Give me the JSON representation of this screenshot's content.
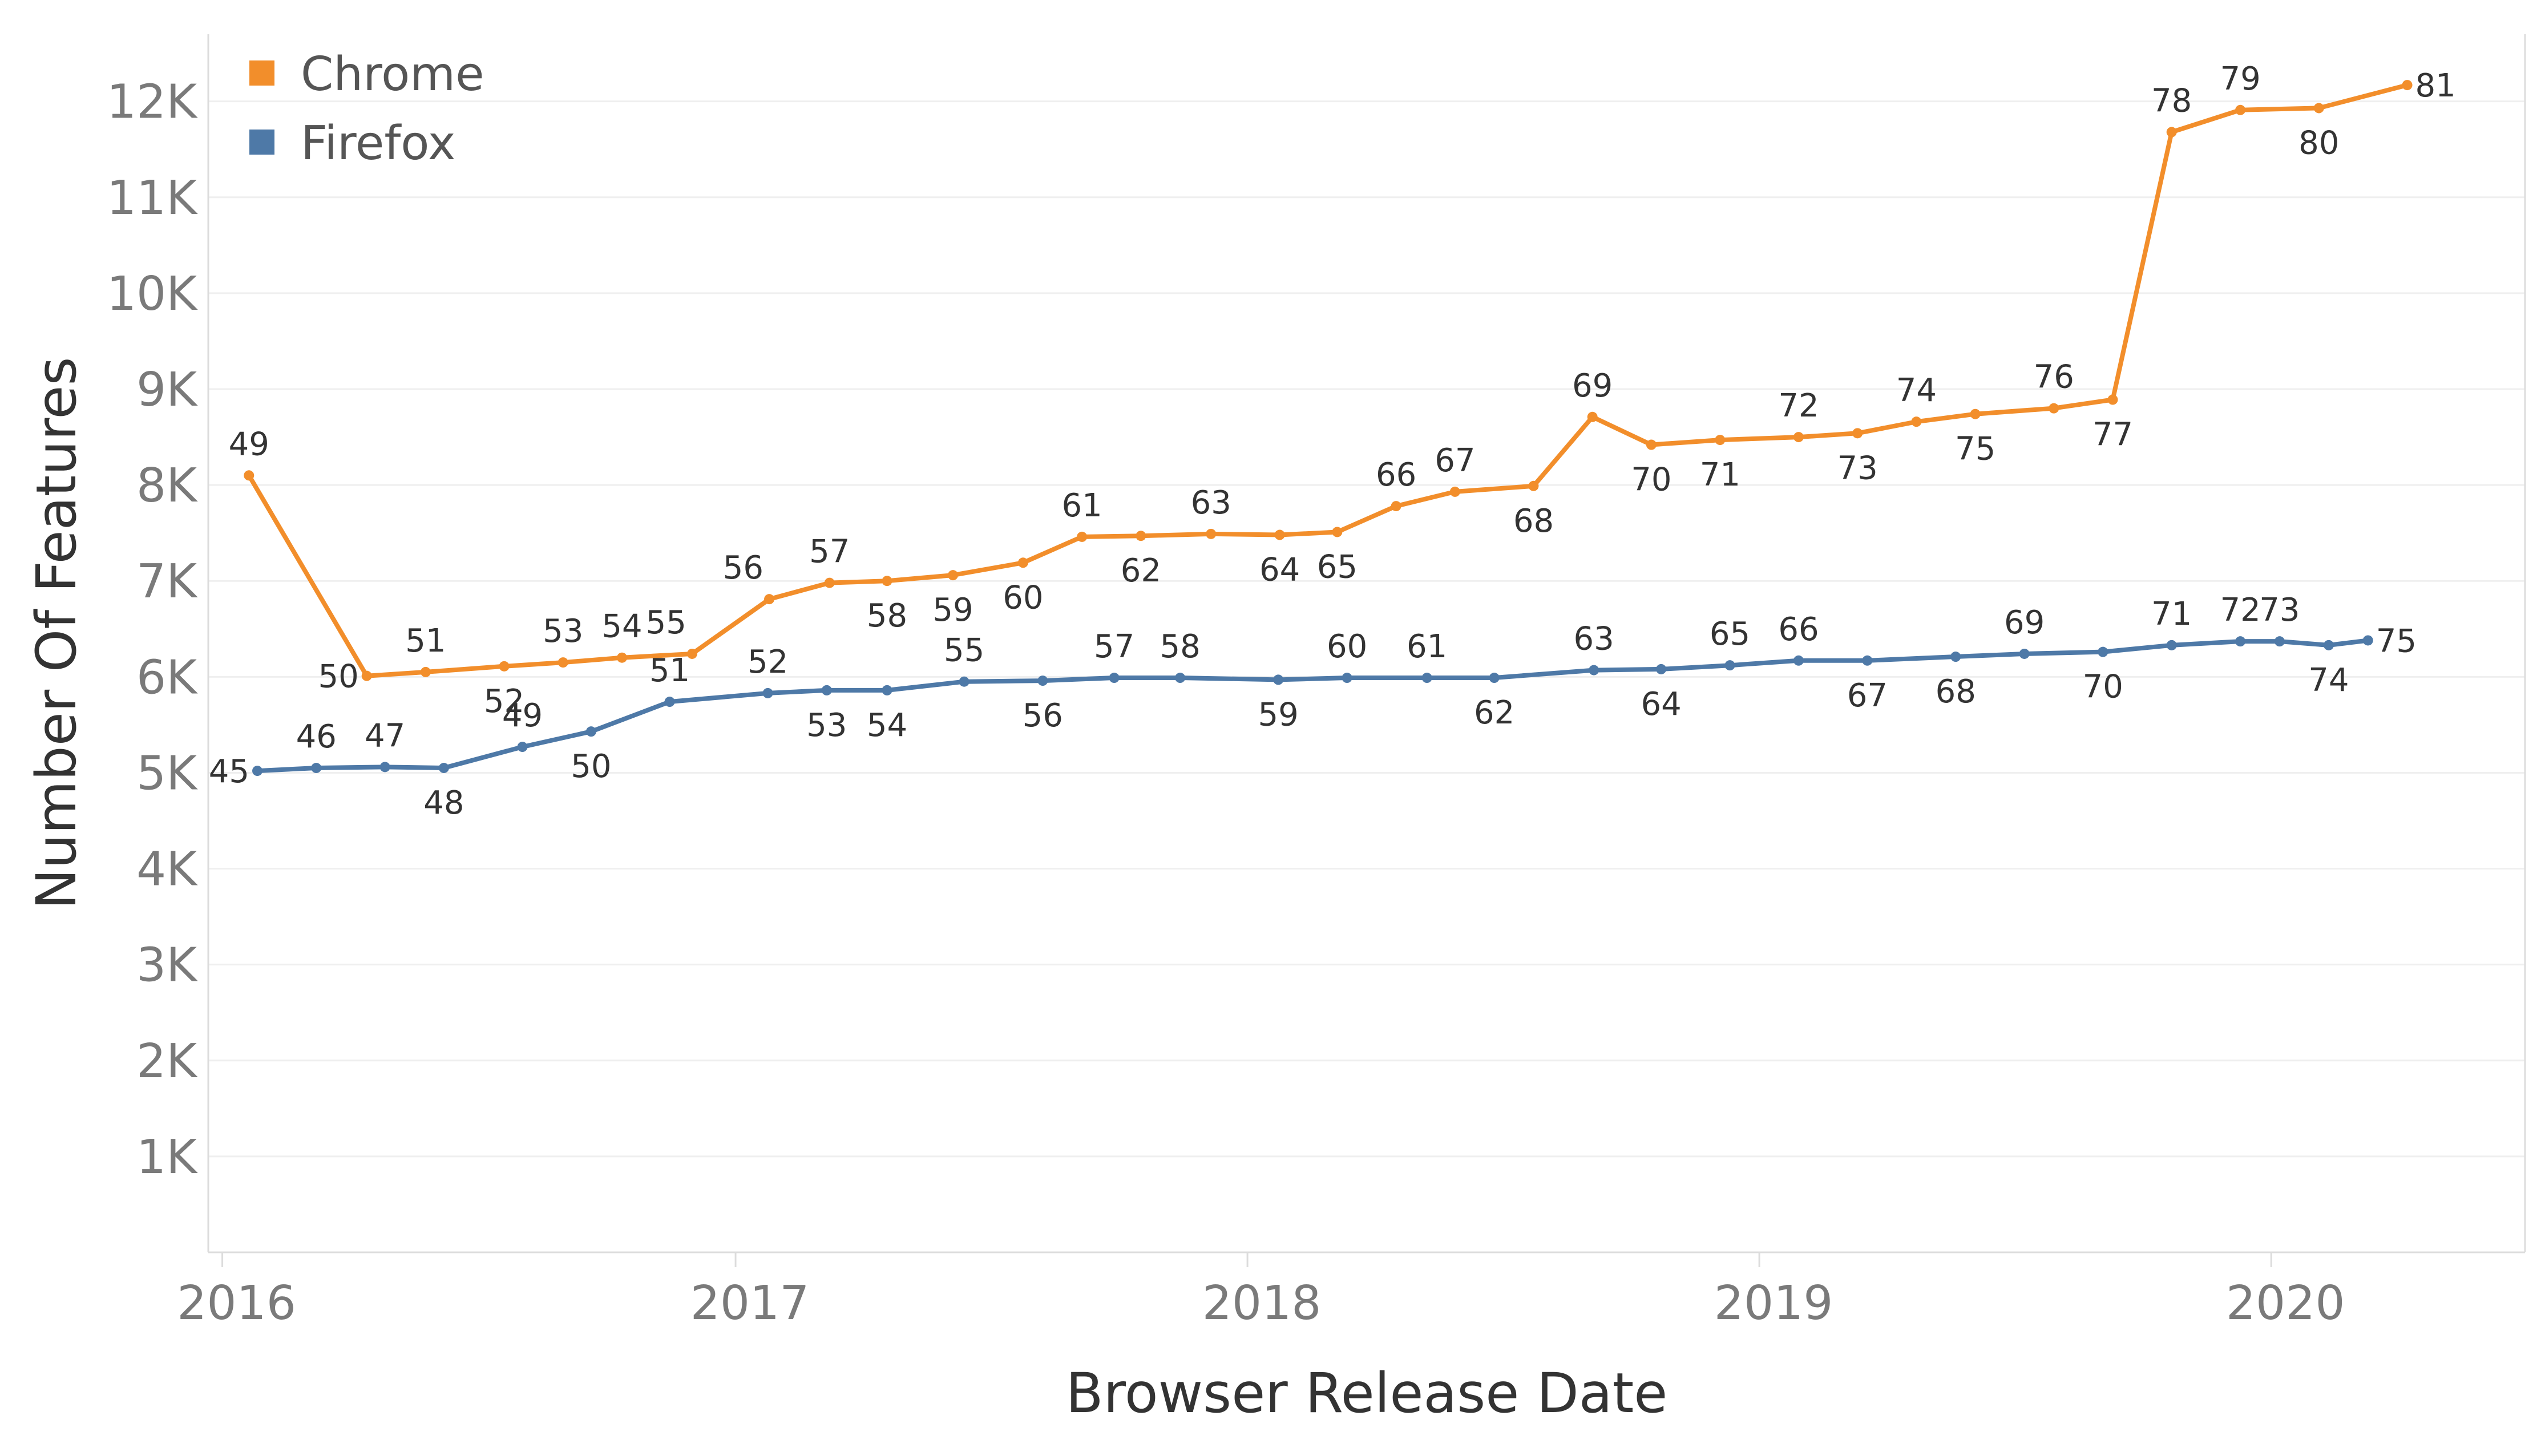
{
  "legend": {
    "entries": [
      {
        "label": "Chrome",
        "color": "#f28e2b"
      },
      {
        "label": "Firefox",
        "color": "#4e79a7"
      }
    ]
  },
  "chart_data": {
    "type": "line",
    "xlabel": "Browser Release Date",
    "ylabel": "Number Of Features",
    "x_ticks": [
      "2016",
      "2017",
      "2018",
      "2019",
      "2020"
    ],
    "y_ticks": [
      "1K",
      "2K",
      "3K",
      "4K",
      "5K",
      "6K",
      "7K",
      "8K",
      "9K",
      "10K",
      "11K",
      "12K"
    ],
    "xlim": [
      "2015-12-22",
      "2020-06-30"
    ],
    "ylim": [
      0,
      12700
    ],
    "grid": "horizontal",
    "legend_position": "top-left",
    "series": [
      {
        "name": "Chrome",
        "color": "#f28e2b",
        "points": [
          {
            "date": "2016-01-20",
            "value": 8100,
            "label": "49",
            "pos": "above"
          },
          {
            "date": "2016-04-13",
            "value": 6010,
            "label": "50",
            "pos": "left"
          },
          {
            "date": "2016-05-25",
            "value": 6050,
            "label": "51",
            "pos": "above"
          },
          {
            "date": "2016-07-20",
            "value": 6110,
            "label": "52",
            "pos": "below"
          },
          {
            "date": "2016-08-31",
            "value": 6150,
            "label": "53",
            "pos": "above"
          },
          {
            "date": "2016-10-12",
            "value": 6200,
            "label": "54",
            "pos": "above"
          },
          {
            "date": "2016-12-01",
            "value": 6240,
            "label": "55",
            "pos": "left-above"
          },
          {
            "date": "2017-01-25",
            "value": 6810,
            "label": "56",
            "pos": "left-above"
          },
          {
            "date": "2017-03-09",
            "value": 6980,
            "label": "57",
            "pos": "above"
          },
          {
            "date": "2017-04-19",
            "value": 7000,
            "label": "58",
            "pos": "below"
          },
          {
            "date": "2017-06-05",
            "value": 7060,
            "label": "59",
            "pos": "below"
          },
          {
            "date": "2017-07-25",
            "value": 7190,
            "label": "60",
            "pos": "below"
          },
          {
            "date": "2017-09-05",
            "value": 7460,
            "label": "61",
            "pos": "above"
          },
          {
            "date": "2017-10-17",
            "value": 7470,
            "label": "62",
            "pos": "below"
          },
          {
            "date": "2017-12-06",
            "value": 7490,
            "label": "63",
            "pos": "above"
          },
          {
            "date": "2018-01-24",
            "value": 7480,
            "label": "64",
            "pos": "below"
          },
          {
            "date": "2018-03-06",
            "value": 7510,
            "label": "65",
            "pos": "below"
          },
          {
            "date": "2018-04-17",
            "value": 7780,
            "label": "66",
            "pos": "above"
          },
          {
            "date": "2018-05-29",
            "value": 7930,
            "label": "67",
            "pos": "above"
          },
          {
            "date": "2018-07-24",
            "value": 7990,
            "label": "68",
            "pos": "below"
          },
          {
            "date": "2018-09-04",
            "value": 8710,
            "label": "69",
            "pos": "above"
          },
          {
            "date": "2018-10-16",
            "value": 8420,
            "label": "70",
            "pos": "below"
          },
          {
            "date": "2018-12-04",
            "value": 8470,
            "label": "71",
            "pos": "below"
          },
          {
            "date": "2019-01-29",
            "value": 8500,
            "label": "72",
            "pos": "above"
          },
          {
            "date": "2019-03-12",
            "value": 8540,
            "label": "73",
            "pos": "below"
          },
          {
            "date": "2019-04-23",
            "value": 8660,
            "label": "74",
            "pos": "above"
          },
          {
            "date": "2019-06-04",
            "value": 8740,
            "label": "75",
            "pos": "below"
          },
          {
            "date": "2019-07-30",
            "value": 8800,
            "label": "76",
            "pos": "above"
          },
          {
            "date": "2019-09-10",
            "value": 8890,
            "label": "77",
            "pos": "below"
          },
          {
            "date": "2019-10-22",
            "value": 11680,
            "label": "78",
            "pos": "above"
          },
          {
            "date": "2019-12-10",
            "value": 11910,
            "label": "79",
            "pos": "above"
          },
          {
            "date": "2020-02-04",
            "value": 11930,
            "label": "80",
            "pos": "below"
          },
          {
            "date": "2020-04-07",
            "value": 12170,
            "label": "81",
            "pos": "right"
          }
        ]
      },
      {
        "name": "Firefox",
        "color": "#4e79a7",
        "points": [
          {
            "date": "2016-01-26",
            "value": 5020,
            "label": "45",
            "pos": "left"
          },
          {
            "date": "2016-03-08",
            "value": 5050,
            "label": "46",
            "pos": "above"
          },
          {
            "date": "2016-04-26",
            "value": 5060,
            "label": "47",
            "pos": "above"
          },
          {
            "date": "2016-06-07",
            "value": 5050,
            "label": "48",
            "pos": "below"
          },
          {
            "date": "2016-08-02",
            "value": 5270,
            "label": "49",
            "pos": "above"
          },
          {
            "date": "2016-09-20",
            "value": 5430,
            "label": "50",
            "pos": "below"
          },
          {
            "date": "2016-11-15",
            "value": 5740,
            "label": "51",
            "pos": "above"
          },
          {
            "date": "2017-01-24",
            "value": 5830,
            "label": "52",
            "pos": "above"
          },
          {
            "date": "2017-03-07",
            "value": 5860,
            "label": "53",
            "pos": "below"
          },
          {
            "date": "2017-04-19",
            "value": 5860,
            "label": "54",
            "pos": "below"
          },
          {
            "date": "2017-06-13",
            "value": 5950,
            "label": "55",
            "pos": "above"
          },
          {
            "date": "2017-08-08",
            "value": 5960,
            "label": "56",
            "pos": "below"
          },
          {
            "date": "2017-09-28",
            "value": 5990,
            "label": "57",
            "pos": "above"
          },
          {
            "date": "2017-11-14",
            "value": 5990,
            "label": "58",
            "pos": "above"
          },
          {
            "date": "2018-01-23",
            "value": 5970,
            "label": "59",
            "pos": "below"
          },
          {
            "date": "2018-03-13",
            "value": 5990,
            "label": "60",
            "pos": "above"
          },
          {
            "date": "2018-05-09",
            "value": 5990,
            "label": "61",
            "pos": "above"
          },
          {
            "date": "2018-06-26",
            "value": 5990,
            "label": "62",
            "pos": "below"
          },
          {
            "date": "2018-09-05",
            "value": 6070,
            "label": "63",
            "pos": "above"
          },
          {
            "date": "2018-10-23",
            "value": 6080,
            "label": "64",
            "pos": "below"
          },
          {
            "date": "2018-12-11",
            "value": 6120,
            "label": "65",
            "pos": "above"
          },
          {
            "date": "2019-01-29",
            "value": 6170,
            "label": "66",
            "pos": "above"
          },
          {
            "date": "2019-03-19",
            "value": 6170,
            "label": "67",
            "pos": "below"
          },
          {
            "date": "2019-05-21",
            "value": 6210,
            "label": "68",
            "pos": "below"
          },
          {
            "date": "2019-07-09",
            "value": 6240,
            "label": "69",
            "pos": "above"
          },
          {
            "date": "2019-09-03",
            "value": 6260,
            "label": "70",
            "pos": "below"
          },
          {
            "date": "2019-10-22",
            "value": 6330,
            "label": "71",
            "pos": "above"
          },
          {
            "date": "2019-12-10",
            "value": 6370,
            "label": "72",
            "pos": "above"
          },
          {
            "date": "2020-01-07",
            "value": 6370,
            "label": "73",
            "pos": "above"
          },
          {
            "date": "2020-02-11",
            "value": 6330,
            "label": "74",
            "pos": "below"
          },
          {
            "date": "2020-03-10",
            "value": 6380,
            "label": "75",
            "pos": "right"
          }
        ]
      }
    ]
  }
}
